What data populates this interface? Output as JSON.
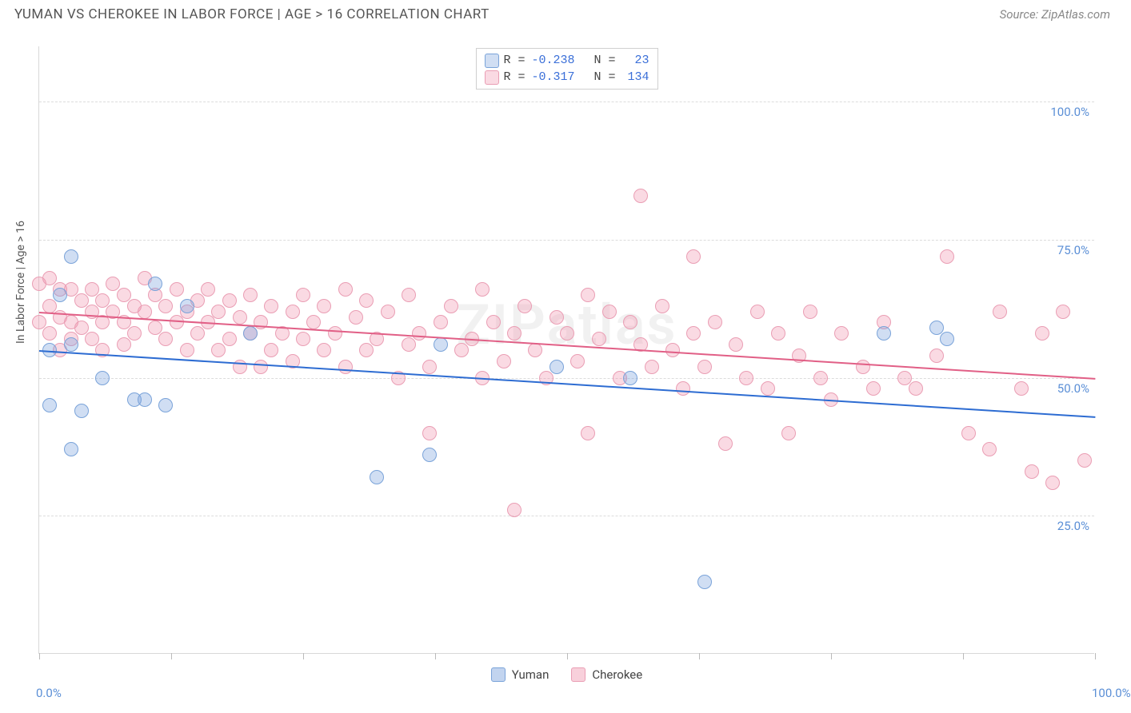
{
  "header": {
    "title": "YUMAN VS CHEROKEE IN LABOR FORCE | AGE > 16 CORRELATION CHART",
    "source": "Source: ZipAtlas.com"
  },
  "watermark": "ZIPatlas",
  "chart": {
    "type": "scatter",
    "ylabel": "In Labor Force | Age > 16",
    "background_color": "#ffffff",
    "grid_color": "#dcdcdc",
    "axis_color": "#d8d8d8",
    "title_fontsize": 17,
    "label_fontsize": 14,
    "tick_fontsize": 15,
    "tick_color": "#5b8fd6",
    "xlim": [
      0,
      100
    ],
    "ylim": [
      0,
      110
    ],
    "xtick_positions": [
      0,
      12.5,
      25,
      37.5,
      50,
      62.5,
      75,
      87.5,
      100
    ],
    "xtick_labels": {
      "0": "0.0%",
      "100": "100.0%"
    },
    "ytick_positions": [
      25,
      50,
      75,
      100
    ],
    "ytick_labels": {
      "25": "25.0%",
      "50": "50.0%",
      "75": "75.0%",
      "100": "100.0%"
    },
    "series": [
      {
        "name": "Yuman",
        "fill_color": "rgba(120,160,220,0.35)",
        "stroke_color": "#7aa3d9",
        "marker_radius": 9,
        "R": "-0.238",
        "N": "23",
        "trend": {
          "x1": 0,
          "y1": 55,
          "x2": 100,
          "y2": 43,
          "color": "#2d6cd2",
          "width": 2
        },
        "points": [
          [
            1,
            55
          ],
          [
            1,
            45
          ],
          [
            2,
            65
          ],
          [
            3,
            72
          ],
          [
            3,
            56
          ],
          [
            3,
            37
          ],
          [
            4,
            44
          ],
          [
            6,
            50
          ],
          [
            9,
            46
          ],
          [
            10,
            46
          ],
          [
            11,
            67
          ],
          [
            12,
            45
          ],
          [
            14,
            63
          ],
          [
            20,
            58
          ],
          [
            32,
            32
          ],
          [
            37,
            36
          ],
          [
            38,
            56
          ],
          [
            49,
            52
          ],
          [
            56,
            50
          ],
          [
            63,
            13
          ],
          [
            80,
            58
          ],
          [
            85,
            59
          ],
          [
            86,
            57
          ]
        ]
      },
      {
        "name": "Cherokee",
        "fill_color": "rgba(240,150,175,0.35)",
        "stroke_color": "#ea9eb4",
        "marker_radius": 9,
        "R": "-0.317",
        "N": "134",
        "trend": {
          "x1": 0,
          "y1": 62,
          "x2": 100,
          "y2": 50,
          "color": "#e15f86",
          "width": 2
        },
        "points": [
          [
            0,
            67
          ],
          [
            0,
            60
          ],
          [
            1,
            68
          ],
          [
            1,
            63
          ],
          [
            1,
            58
          ],
          [
            2,
            66
          ],
          [
            2,
            61
          ],
          [
            2,
            55
          ],
          [
            3,
            66
          ],
          [
            3,
            60
          ],
          [
            3,
            57
          ],
          [
            4,
            64
          ],
          [
            4,
            59
          ],
          [
            5,
            66
          ],
          [
            5,
            62
          ],
          [
            5,
            57
          ],
          [
            6,
            64
          ],
          [
            6,
            60
          ],
          [
            6,
            55
          ],
          [
            7,
            67
          ],
          [
            7,
            62
          ],
          [
            8,
            65
          ],
          [
            8,
            60
          ],
          [
            8,
            56
          ],
          [
            9,
            63
          ],
          [
            9,
            58
          ],
          [
            10,
            68
          ],
          [
            10,
            62
          ],
          [
            11,
            65
          ],
          [
            11,
            59
          ],
          [
            12,
            63
          ],
          [
            12,
            57
          ],
          [
            13,
            66
          ],
          [
            13,
            60
          ],
          [
            14,
            62
          ],
          [
            14,
            55
          ],
          [
            15,
            64
          ],
          [
            15,
            58
          ],
          [
            16,
            66
          ],
          [
            16,
            60
          ],
          [
            17,
            62
          ],
          [
            17,
            55
          ],
          [
            18,
            64
          ],
          [
            18,
            57
          ],
          [
            19,
            61
          ],
          [
            19,
            52
          ],
          [
            20,
            65
          ],
          [
            20,
            58
          ],
          [
            21,
            60
          ],
          [
            21,
            52
          ],
          [
            22,
            63
          ],
          [
            22,
            55
          ],
          [
            23,
            58
          ],
          [
            24,
            62
          ],
          [
            24,
            53
          ],
          [
            25,
            65
          ],
          [
            25,
            57
          ],
          [
            26,
            60
          ],
          [
            27,
            63
          ],
          [
            27,
            55
          ],
          [
            28,
            58
          ],
          [
            29,
            66
          ],
          [
            29,
            52
          ],
          [
            30,
            61
          ],
          [
            31,
            64
          ],
          [
            31,
            55
          ],
          [
            32,
            57
          ],
          [
            33,
            62
          ],
          [
            34,
            50
          ],
          [
            35,
            65
          ],
          [
            35,
            56
          ],
          [
            36,
            58
          ],
          [
            37,
            52
          ],
          [
            37,
            40
          ],
          [
            38,
            60
          ],
          [
            39,
            63
          ],
          [
            40,
            55
          ],
          [
            41,
            57
          ],
          [
            42,
            66
          ],
          [
            42,
            50
          ],
          [
            43,
            60
          ],
          [
            44,
            53
          ],
          [
            45,
            58
          ],
          [
            45,
            26
          ],
          [
            46,
            63
          ],
          [
            47,
            55
          ],
          [
            48,
            50
          ],
          [
            49,
            61
          ],
          [
            50,
            58
          ],
          [
            51,
            53
          ],
          [
            52,
            65
          ],
          [
            52,
            40
          ],
          [
            53,
            57
          ],
          [
            54,
            62
          ],
          [
            55,
            50
          ],
          [
            56,
            60
          ],
          [
            57,
            56
          ],
          [
            57,
            83
          ],
          [
            58,
            52
          ],
          [
            59,
            63
          ],
          [
            60,
            55
          ],
          [
            61,
            48
          ],
          [
            62,
            72
          ],
          [
            62,
            58
          ],
          [
            63,
            52
          ],
          [
            64,
            60
          ],
          [
            65,
            38
          ],
          [
            66,
            56
          ],
          [
            67,
            50
          ],
          [
            68,
            62
          ],
          [
            69,
            48
          ],
          [
            70,
            58
          ],
          [
            71,
            40
          ],
          [
            72,
            54
          ],
          [
            73,
            62
          ],
          [
            74,
            50
          ],
          [
            75,
            46
          ],
          [
            76,
            58
          ],
          [
            78,
            52
          ],
          [
            79,
            48
          ],
          [
            80,
            60
          ],
          [
            82,
            50
          ],
          [
            83,
            48
          ],
          [
            85,
            54
          ],
          [
            86,
            72
          ],
          [
            88,
            40
          ],
          [
            90,
            37
          ],
          [
            91,
            62
          ],
          [
            93,
            48
          ],
          [
            94,
            33
          ],
          [
            95,
            58
          ],
          [
            96,
            31
          ],
          [
            97,
            62
          ],
          [
            99,
            35
          ]
        ]
      }
    ],
    "legend": {
      "swatch_border_radius": 3,
      "items": [
        {
          "label": "Yuman",
          "fill": "rgba(120,160,220,0.45)",
          "stroke": "#7aa3d9"
        },
        {
          "label": "Cherokee",
          "fill": "rgba(240,150,175,0.45)",
          "stroke": "#ea9eb4"
        }
      ]
    }
  }
}
